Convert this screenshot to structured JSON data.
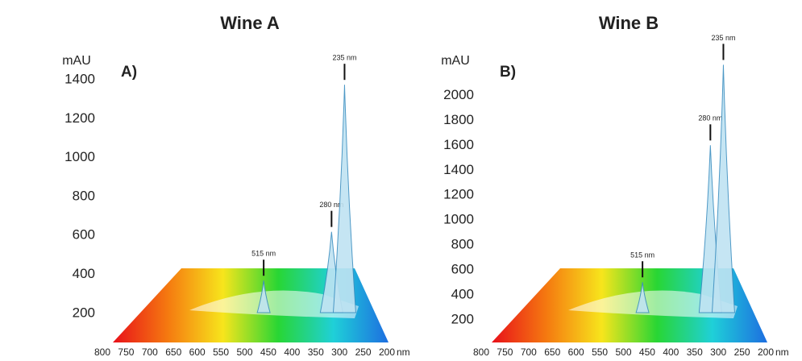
{
  "chart_data": [
    {
      "type": "spectrum",
      "title": "Wine A",
      "panel_label": "A)",
      "y_label": "mAU",
      "x_label": "nm",
      "xlim": [
        800,
        200
      ],
      "xticks": [
        800,
        750,
        700,
        650,
        600,
        550,
        500,
        450,
        400,
        350,
        300,
        250,
        200
      ],
      "ylim": [
        50,
        1500
      ],
      "yticks": [
        200,
        400,
        600,
        800,
        1000,
        1200,
        1400
      ],
      "colors": [
        "#e8101a",
        "#f57a10",
        "#f7e51c",
        "#28d634",
        "#1fd0d8",
        "#1d6ee0"
      ],
      "peaks": {
        "x": [
          515,
          280,
          235
        ],
        "values": [
          368,
          619,
          1375
        ],
        "labels": [
          "515 nm",
          "280 nm",
          "235 nm"
        ]
      }
    },
    {
      "type": "spectrum",
      "title": "Wine B",
      "panel_label": "B)",
      "y_label": "mAU",
      "x_label": "nm",
      "xlim": [
        800,
        200
      ],
      "xticks": [
        800,
        750,
        700,
        650,
        600,
        550,
        500,
        450,
        400,
        350,
        300,
        250,
        200
      ],
      "ylim": [
        20,
        2280
      ],
      "yticks": [
        200,
        400,
        600,
        800,
        1000,
        1200,
        1400,
        1600,
        1800,
        2000
      ],
      "colors": [
        "#e8101a",
        "#f57a10",
        "#f7e51c",
        "#28d634",
        "#1fd0d8",
        "#1d6ee0"
      ],
      "peaks": {
        "x": [
          515,
          280,
          235
        ],
        "values": [
          503,
          1600,
          2245
        ],
        "labels": [
          "515 nm",
          "280 nm",
          "235 nm"
        ]
      }
    }
  ]
}
